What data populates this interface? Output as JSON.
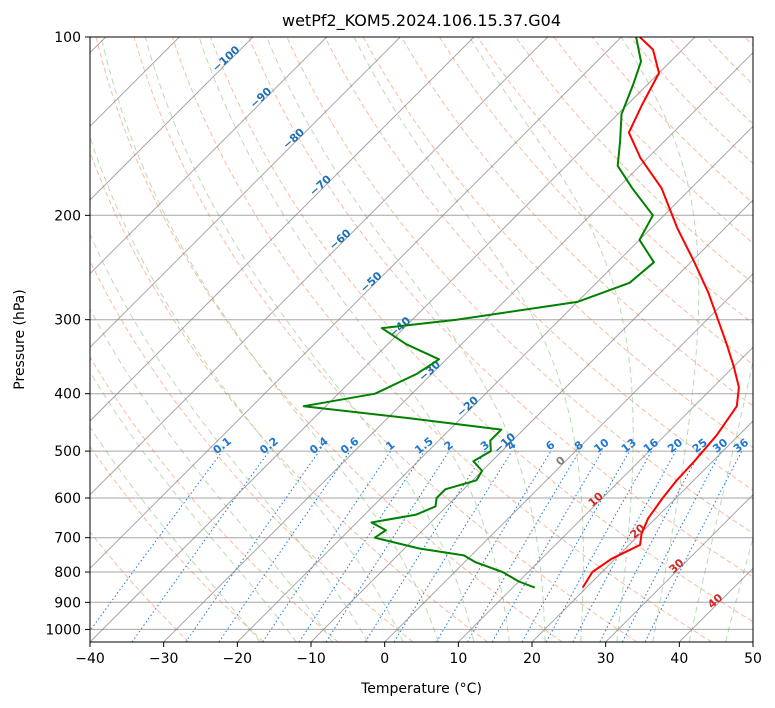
{
  "chart_data": {
    "type": "skew-t",
    "title": "wetPf2_KOM5.2024.106.15.37.G04",
    "xlabel": "Temperature (°C)",
    "ylabel": "Pressure (hPa)",
    "xlim": [
      -40,
      50
    ],
    "ylim": [
      1050,
      100
    ],
    "y_scale": "log",
    "grid": true,
    "x_ticks": [
      -40,
      -30,
      -20,
      -10,
      0,
      10,
      20,
      30,
      40,
      50
    ],
    "x_tick_labels": [
      "−40",
      "−30",
      "−20",
      "−10",
      "0",
      "10",
      "20",
      "30",
      "40",
      "50"
    ],
    "y_ticks": [
      100,
      200,
      300,
      400,
      500,
      600,
      700,
      800,
      900,
      1000
    ],
    "y_tick_labels": [
      "100",
      "200",
      "300",
      "400",
      "500",
      "600",
      "700",
      "800",
      "900",
      "1000"
    ],
    "series": [
      {
        "color": "#ff0000",
        "points": [
          [
            850,
            19.5
          ],
          [
            800,
            18.7
          ],
          [
            760,
            19.5
          ],
          [
            720,
            21.5
          ],
          [
            690,
            20.2
          ],
          [
            650,
            19.0
          ],
          [
            600,
            18.2
          ],
          [
            560,
            17.7
          ],
          [
            520,
            17.5
          ],
          [
            470,
            17.0
          ],
          [
            420,
            15.8
          ],
          [
            390,
            13.5
          ],
          [
            360,
            10.0
          ],
          [
            330,
            6.0
          ],
          [
            300,
            1.5
          ],
          [
            270,
            -3.5
          ],
          [
            240,
            -9.5
          ],
          [
            210,
            -16.5
          ],
          [
            180,
            -24.0
          ],
          [
            160,
            -31.0
          ],
          [
            145,
            -36.0
          ],
          [
            130,
            -38.0
          ],
          [
            115,
            -40.0
          ],
          [
            105,
            -44.0
          ],
          [
            100,
            -47.5
          ]
        ]
      },
      {
        "color": "#008000",
        "points": [
          [
            850,
            13.0
          ],
          [
            830,
            10.0
          ],
          [
            800,
            6.5
          ],
          [
            770,
            1.5
          ],
          [
            750,
            -1.0
          ],
          [
            730,
            -8.0
          ],
          [
            700,
            -15.5
          ],
          [
            680,
            -15.0
          ],
          [
            660,
            -18.0
          ],
          [
            640,
            -13.0
          ],
          [
            620,
            -11.5
          ],
          [
            600,
            -12.5
          ],
          [
            580,
            -12.5
          ],
          [
            560,
            -9.5
          ],
          [
            540,
            -10.0
          ],
          [
            520,
            -12.5
          ],
          [
            500,
            -11.5
          ],
          [
            480,
            -13.0
          ],
          [
            460,
            -13.0
          ],
          [
            440,
            -27.0
          ],
          [
            420,
            -43.0
          ],
          [
            400,
            -35.0
          ],
          [
            370,
            -32.0
          ],
          [
            350,
            -31.0
          ],
          [
            330,
            -37.5
          ],
          [
            310,
            -43.0
          ],
          [
            300,
            -34.0
          ],
          [
            280,
            -20.0
          ],
          [
            260,
            -15.5
          ],
          [
            240,
            -15.0
          ],
          [
            220,
            -20.0
          ],
          [
            200,
            -21.5
          ],
          [
            180,
            -28.0
          ],
          [
            165,
            -33.0
          ],
          [
            150,
            -36.0
          ],
          [
            135,
            -39.5
          ],
          [
            120,
            -42.0
          ],
          [
            110,
            -44.0
          ],
          [
            100,
            -48.0
          ]
        ]
      }
    ],
    "dry_adiabat_labels": [
      "−100",
      "−90",
      "−80",
      "−70",
      "−60",
      "−50",
      "−40",
      "−30",
      "−20",
      "−10",
      "0",
      "10",
      "20",
      "30",
      "40"
    ],
    "mixing_ratio_labels": [
      "0.1",
      "0.2",
      "0.4",
      "0.6",
      "1",
      "1.5",
      "2",
      "3",
      "4",
      "6",
      "8",
      "10",
      "13",
      "16",
      "20",
      "25",
      "30",
      "36"
    ],
    "colors": {
      "temperature": "#ff0000",
      "dewpoint": "#008000",
      "isotherm": "#808080",
      "dry_adiabat": "#f4a582",
      "moist_adiabat": "#9ccc94",
      "mixing_ratio": "#1f77d4",
      "cold_label": "#1f6fb4",
      "warm_label": "#d62728"
    }
  }
}
